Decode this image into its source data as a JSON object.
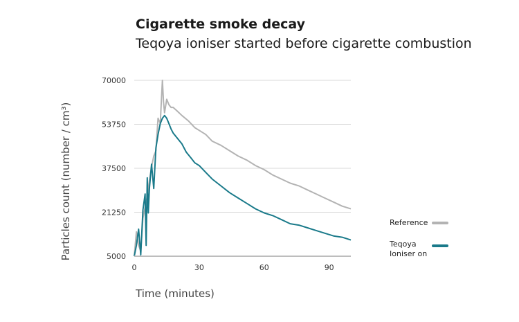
{
  "chart_data": {
    "type": "line",
    "title": "Cigarette smoke decay",
    "subtitle": "Teqoya ioniser started before cigarette combustion",
    "xlabel": "Time (minutes)",
    "ylabel": "Particles count (number / cm³)",
    "xlim": [
      0,
      100
    ],
    "ylim": [
      5000,
      70000
    ],
    "xticks": [
      0,
      30,
      60,
      90
    ],
    "yticks": [
      5000,
      21250,
      37500,
      53750,
      70000
    ],
    "grid": true,
    "legend_position": "right",
    "series": [
      {
        "name": "Reference",
        "legend_lines": [
          "Reference"
        ],
        "color": "#b3b3b3",
        "x": [
          0,
          1,
          2,
          3,
          4,
          5,
          6,
          7,
          8,
          9,
          10,
          11,
          12,
          12.5,
          13,
          13.5,
          14,
          15,
          16,
          17,
          18,
          20,
          22,
          25,
          28,
          30,
          33,
          36,
          40,
          44,
          48,
          52,
          56,
          60,
          64,
          68,
          72,
          76,
          80,
          84,
          88,
          92,
          96,
          100
        ],
        "y": [
          5000,
          14000,
          9000,
          7000,
          19000,
          23000,
          27000,
          33000,
          38000,
          42000,
          44000,
          56000,
          54000,
          62000,
          70000,
          62000,
          58000,
          63000,
          61000,
          60000,
          60000,
          58500,
          57000,
          55000,
          52500,
          51500,
          50000,
          47500,
          46000,
          44000,
          42000,
          40500,
          38500,
          37000,
          35000,
          33500,
          32000,
          31000,
          29500,
          28000,
          26500,
          25000,
          23500,
          22500
        ]
      },
      {
        "name": "Teqoya Ioniser on",
        "legend_lines": [
          "Teqoya",
          "Ioniser on"
        ],
        "color": "#1a7a8a",
        "x": [
          0,
          1,
          2,
          3,
          4,
          5,
          5.5,
          6,
          6.5,
          7,
          8,
          9,
          10,
          11,
          12,
          13,
          14,
          15,
          16,
          17,
          18,
          20,
          22,
          24,
          26,
          28,
          30,
          33,
          36,
          40,
          44,
          48,
          52,
          56,
          60,
          64,
          68,
          72,
          76,
          80,
          84,
          88,
          92,
          96,
          100
        ],
        "y": [
          5000,
          9000,
          15000,
          5500,
          22000,
          28000,
          9000,
          34000,
          21000,
          30000,
          39000,
          30000,
          45000,
          50000,
          54000,
          56000,
          57000,
          56000,
          54000,
          52000,
          50500,
          48500,
          46500,
          43500,
          41500,
          39500,
          38500,
          36000,
          33500,
          31000,
          28500,
          26500,
          24500,
          22500,
          21000,
          20000,
          18500,
          17000,
          16500,
          15500,
          14500,
          13500,
          12500,
          12000,
          11000
        ]
      }
    ]
  }
}
